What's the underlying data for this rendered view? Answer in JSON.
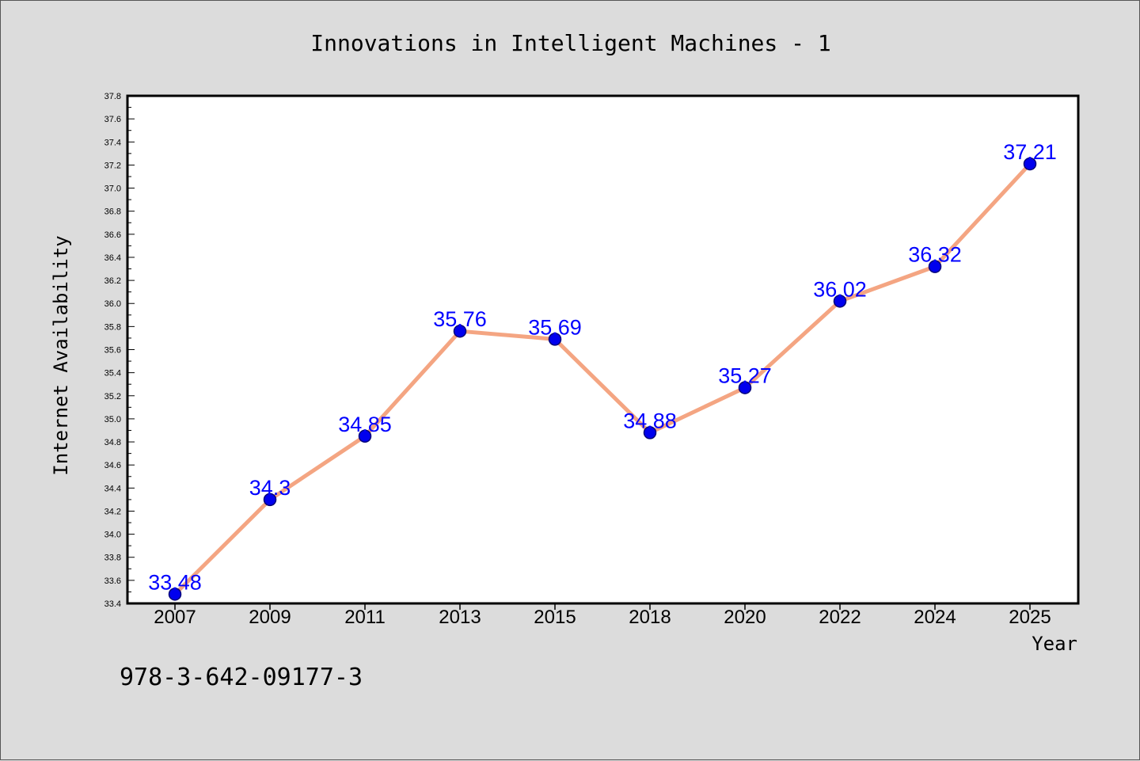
{
  "chart_data": {
    "type": "line",
    "title": "Innovations in Intelligent Machines - 1",
    "xlabel": "Year",
    "ylabel": "Internet Availability",
    "categories": [
      "2007",
      "2009",
      "2011",
      "2013",
      "2015",
      "2018",
      "2020",
      "2022",
      "2024",
      "2025"
    ],
    "series": [
      {
        "values": [
          33.48,
          34.3,
          34.85,
          35.76,
          35.69,
          34.88,
          35.27,
          36.02,
          36.32,
          37.21
        ]
      }
    ],
    "data_labels": [
      "33.48",
      "34.3",
      "34.85",
      "35.76",
      "35.69",
      "34.88",
      "35.27",
      "36.02",
      "36.32",
      "37.21"
    ],
    "ylim": [
      33.4,
      37.8
    ],
    "y_ticks": [
      "33.4",
      "33.6",
      "33.8",
      "34.0",
      "34.2",
      "34.4",
      "34.6",
      "34.8",
      "35.0",
      "35.2",
      "35.4",
      "35.6",
      "35.8",
      "36.0",
      "36.2",
      "36.4",
      "36.6",
      "36.8",
      "37.0",
      "37.2",
      "37.4",
      "37.6",
      "37.8"
    ],
    "grid": false,
    "colors": {
      "line": "#f4a582",
      "marker": "#0000ee",
      "label": "#0000ff"
    }
  },
  "footer_text": "978-3-642-09177-3"
}
